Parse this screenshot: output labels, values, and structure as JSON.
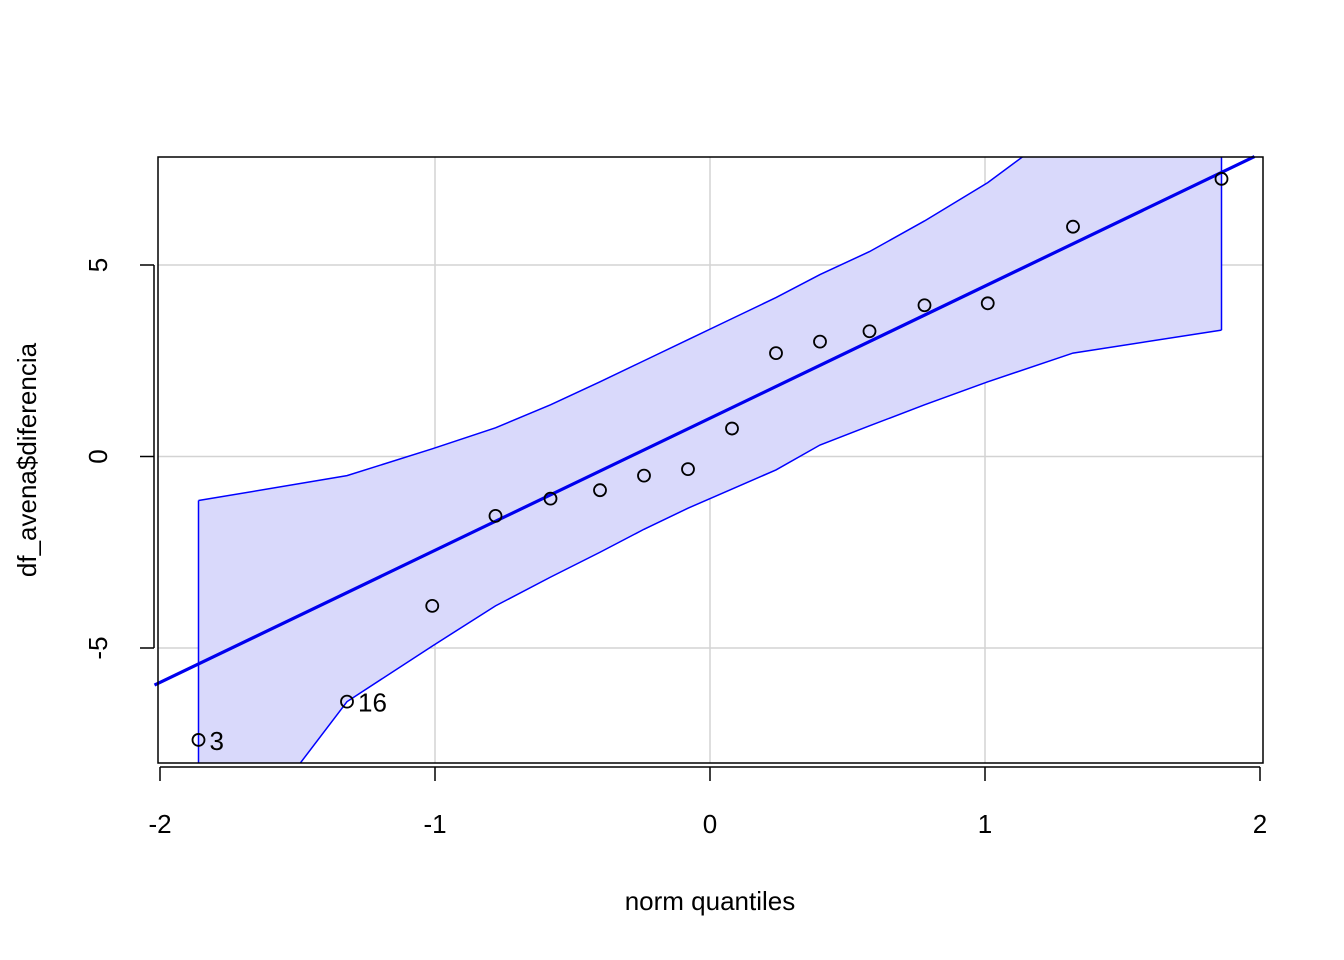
{
  "chart_data": {
    "type": "scatter",
    "title": "",
    "xlabel": "norm quantiles",
    "ylabel": "df_avena$diferencia",
    "xlim": [
      -2.0,
      2.0
    ],
    "ylim": [
      -8.0,
      7.8
    ],
    "grid": true,
    "x_ticks": [
      {
        "value": -2,
        "label": "-2"
      },
      {
        "value": -1,
        "label": "-1"
      },
      {
        "value": 0,
        "label": "0"
      },
      {
        "value": 1,
        "label": "1"
      },
      {
        "value": 2,
        "label": "2"
      }
    ],
    "y_ticks": [
      {
        "value": -5,
        "label": "-5"
      },
      {
        "value": 0,
        "label": "0"
      },
      {
        "value": 5,
        "label": "5"
      }
    ],
    "points": [
      {
        "x": -1.86,
        "y": -7.4,
        "label": "3"
      },
      {
        "x": -1.32,
        "y": -6.4,
        "label": "16"
      },
      {
        "x": -1.01,
        "y": -3.9,
        "label": ""
      },
      {
        "x": -0.78,
        "y": -1.55,
        "label": ""
      },
      {
        "x": -0.58,
        "y": -1.1,
        "label": ""
      },
      {
        "x": -0.4,
        "y": -0.88,
        "label": ""
      },
      {
        "x": -0.24,
        "y": -0.5,
        "label": ""
      },
      {
        "x": -0.08,
        "y": -0.33,
        "label": ""
      },
      {
        "x": 0.08,
        "y": 0.73,
        "label": ""
      },
      {
        "x": 0.24,
        "y": 2.7,
        "label": ""
      },
      {
        "x": 0.4,
        "y": 3.0,
        "label": ""
      },
      {
        "x": 0.58,
        "y": 3.27,
        "label": ""
      },
      {
        "x": 0.78,
        "y": 3.95,
        "label": ""
      },
      {
        "x": 1.01,
        "y": 4.0,
        "label": ""
      },
      {
        "x": 1.32,
        "y": 6.0,
        "label": ""
      },
      {
        "x": 1.86,
        "y": 7.25,
        "label": ""
      }
    ],
    "reference_line": {
      "intercept": 1.0,
      "slope": 3.45
    },
    "envelope": {
      "x": [
        -1.86,
        -1.32,
        -1.01,
        -0.78,
        -0.58,
        -0.4,
        -0.24,
        -0.08,
        0.08,
        0.24,
        0.4,
        0.58,
        0.78,
        1.01,
        1.32,
        1.86
      ],
      "upper": [
        -1.15,
        -0.5,
        0.2,
        0.75,
        1.35,
        1.95,
        2.5,
        3.05,
        3.6,
        4.15,
        4.75,
        5.35,
        6.15,
        7.15,
        8.8,
        12.8
      ],
      "lower": [
        -11.5,
        -6.4,
        -4.95,
        -3.9,
        -3.15,
        -2.5,
        -1.9,
        -1.35,
        -0.85,
        -0.35,
        0.3,
        0.8,
        1.35,
        1.95,
        2.7,
        3.3
      ]
    },
    "colors": {
      "band_fill": "#d9d9fb",
      "band_edge": "#0000ff",
      "line": "#0000ee",
      "points": "#000000",
      "grid": "#d3d3d3",
      "frame": "#000000"
    }
  }
}
